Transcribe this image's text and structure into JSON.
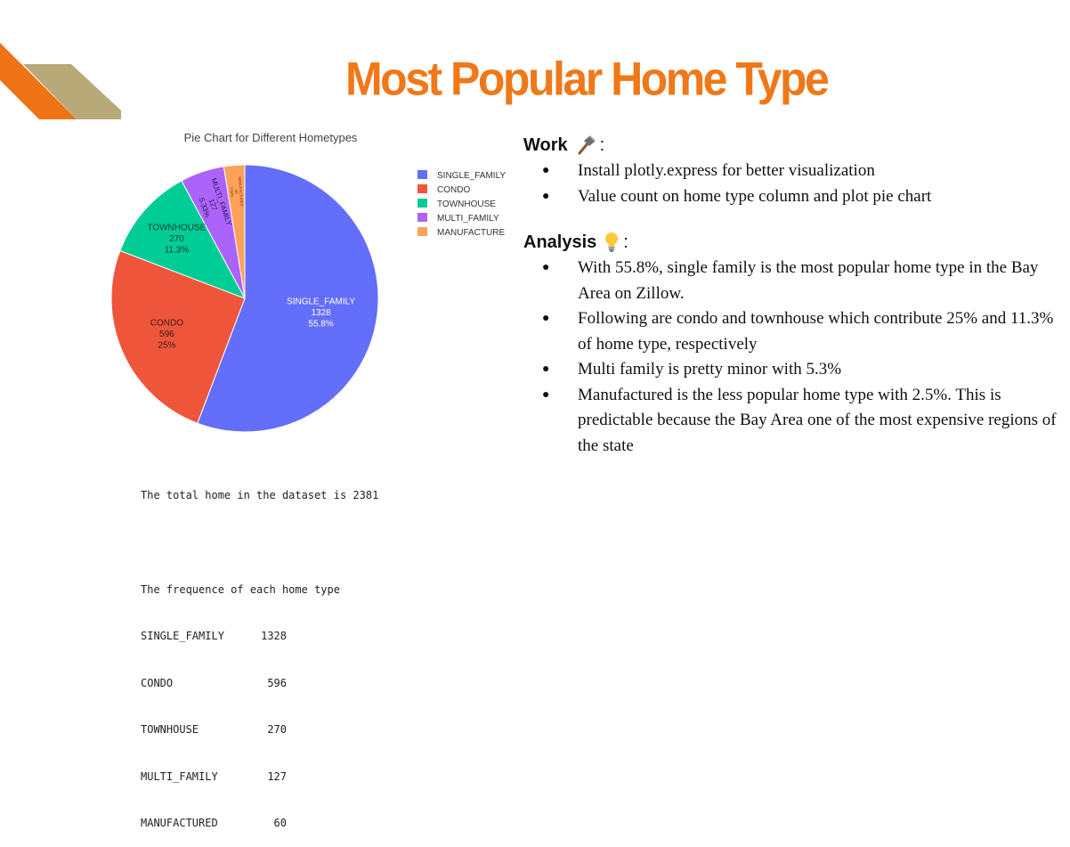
{
  "slide": {
    "title": "Most Popular Home Type",
    "colors": {
      "title": "#f07818",
      "deco_orange": "#ef7214",
      "deco_khaki": "#b7a978"
    }
  },
  "chart_data": {
    "type": "pie",
    "title": "Pie Chart for Different Hometypes",
    "categories": [
      "SINGLE_FAMILY",
      "CONDO",
      "TOWNHOUSE",
      "MULTI_FAMILY",
      "MANUFACTURED"
    ],
    "values": [
      1328,
      596,
      270,
      127,
      60
    ],
    "percent_labels": [
      "55.8%",
      "25%",
      "11.3%",
      "5.33%",
      "2.52%"
    ],
    "legend_labels": [
      "SINGLE_FAMILY",
      "CONDO",
      "TOWNHOUSE",
      "MULTI_FAMILY",
      "MANUFACTURE"
    ],
    "colors": [
      "#636efa",
      "#ef553b",
      "#00cc96",
      "#ab63fa",
      "#ffa15a"
    ],
    "legend_position": "right"
  },
  "console": {
    "total_line": "The total home in the dataset is 2381",
    "freq_header": "The frequence of each home type",
    "rows": [
      {
        "name": "SINGLE_FAMILY",
        "count": "1328"
      },
      {
        "name": "CONDO",
        "count": "596"
      },
      {
        "name": "TOWNHOUSE",
        "count": "270"
      },
      {
        "name": "MULTI_FAMILY",
        "count": "127"
      },
      {
        "name": "MANUFACTURED",
        "count": "60"
      }
    ]
  },
  "work": {
    "heading": "Work",
    "icon": "hammer-icon",
    "colon": ":",
    "bullets": [
      "Install plotly.express for better visualization",
      "Value count on home type column and plot pie chart"
    ]
  },
  "analysis": {
    "heading": "Analysis",
    "icon": "lightbulb-icon",
    "colon": ":",
    "bullets": [
      "With 55.8%, single family is the most popular home type in the Bay Area on Zillow.",
      "Following are condo and townhouse which contribute 25% and 11.3% of home type, respectively",
      "Multi family is pretty minor with 5.3%",
      "Manufactured is the less popular home type with 2.5%. This is predictable because the Bay Area one of the most expensive regions of the state"
    ]
  }
}
